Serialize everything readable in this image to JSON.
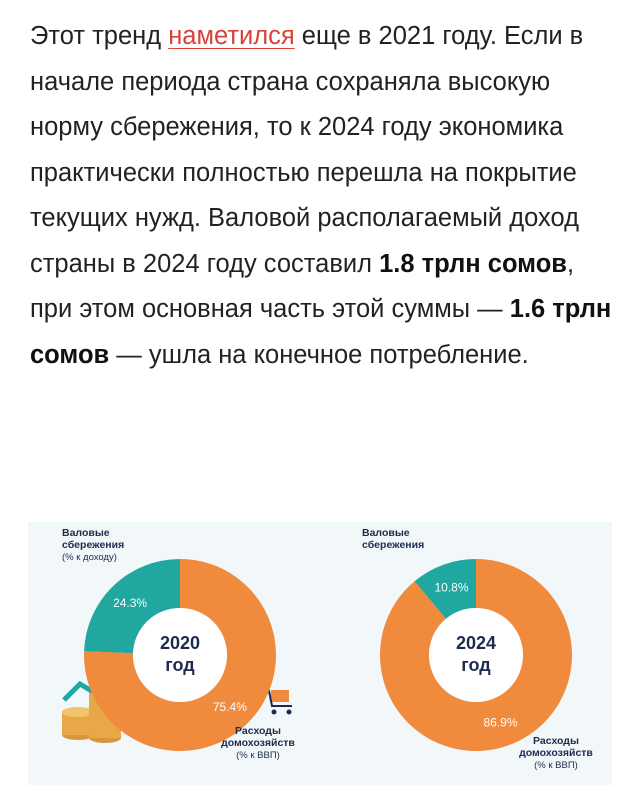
{
  "article": {
    "text_1": "Этот тренд ",
    "link": "наметился",
    "text_2": " еще в 2021 году. Если в начале периода страна сохраняла высокую норму сбережения, то к 2024 году экономика практически полностью перешла на покрытие текущих нужд. Валовой располагаемый доход страны в 2024 году составил ",
    "bold_1": "1.8 трлн сомов",
    "text_3": ", при этом основная часть этой суммы — ",
    "bold_2": "1.6 трлн сомов",
    "text_4": " — ушла на конечное потребление."
  },
  "chart_data": [
    {
      "type": "pie",
      "center_label": [
        "2020",
        "год"
      ],
      "categories": [
        [
          "Валовые",
          "сбережения",
          "(% к доходу)"
        ],
        [
          "Расходы",
          "домохозяйств",
          "(% к ВВП)"
        ]
      ],
      "values": [
        24.3,
        75.4
      ],
      "value_labels": [
        "24.3%",
        "75.4%"
      ],
      "colors": [
        "#1fa7a0",
        "#f08a3c"
      ]
    },
    {
      "type": "pie",
      "center_label": [
        "2024",
        "год"
      ],
      "categories": [
        [
          "Валовые",
          "сбережения"
        ],
        [
          "Расходы",
          "домохозяйств",
          "(% к ВВП)"
        ]
      ],
      "values": [
        10.8,
        86.9
      ],
      "value_labels": [
        "10.8%",
        "86.9%"
      ],
      "colors": [
        "#1fa7a0",
        "#f08a3c"
      ]
    }
  ]
}
